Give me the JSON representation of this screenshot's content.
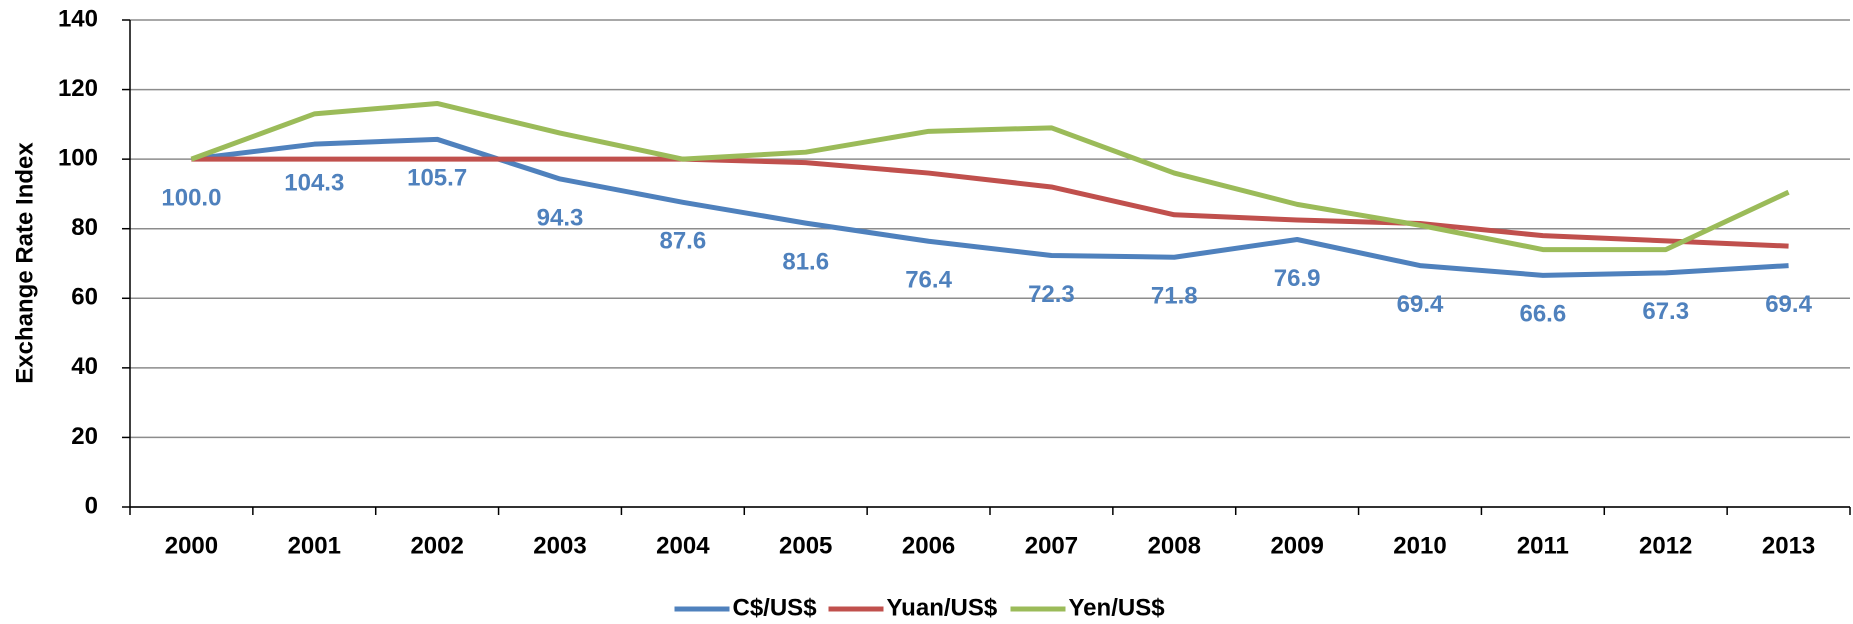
{
  "chart_data": {
    "type": "line",
    "y_label": "Exchange Rate Index",
    "categories": [
      "2000",
      "2001",
      "2002",
      "2003",
      "2004",
      "2005",
      "2006",
      "2007",
      "2008",
      "2009",
      "2010",
      "2011",
      "2012",
      "2013"
    ],
    "series": [
      {
        "name": "C$/US$",
        "color": "#4f81bd",
        "values": [
          100,
          104.3,
          105.7,
          94.3,
          87.6,
          81.6,
          76.4,
          72.3,
          71.8,
          76.9,
          69.4,
          66.6,
          67.3,
          69.4
        ],
        "value_labels": [
          "100.0",
          "104.3",
          "105.7",
          "94.3",
          "87.6",
          "81.6",
          "76.4",
          "72.3",
          "71.8",
          "76.9",
          "69.4",
          "66.6",
          "67.3",
          "69.4"
        ]
      },
      {
        "name": "Yuan/US$",
        "color": "#c0504d",
        "values": [
          100,
          100,
          100,
          100,
          100,
          99,
          96,
          92,
          84,
          82.5,
          81.5,
          78,
          76.5,
          75
        ]
      },
      {
        "name": "Yen/US$",
        "color": "#9bbb59",
        "values": [
          100,
          113,
          116,
          107.5,
          100,
          102,
          108,
          109,
          96,
          87,
          81,
          74,
          74,
          90.5
        ]
      }
    ],
    "ylim": [
      0,
      140
    ],
    "yticks": [
      0,
      20,
      40,
      60,
      80,
      100,
      120,
      140
    ],
    "grid": true,
    "legend": "bottom"
  }
}
